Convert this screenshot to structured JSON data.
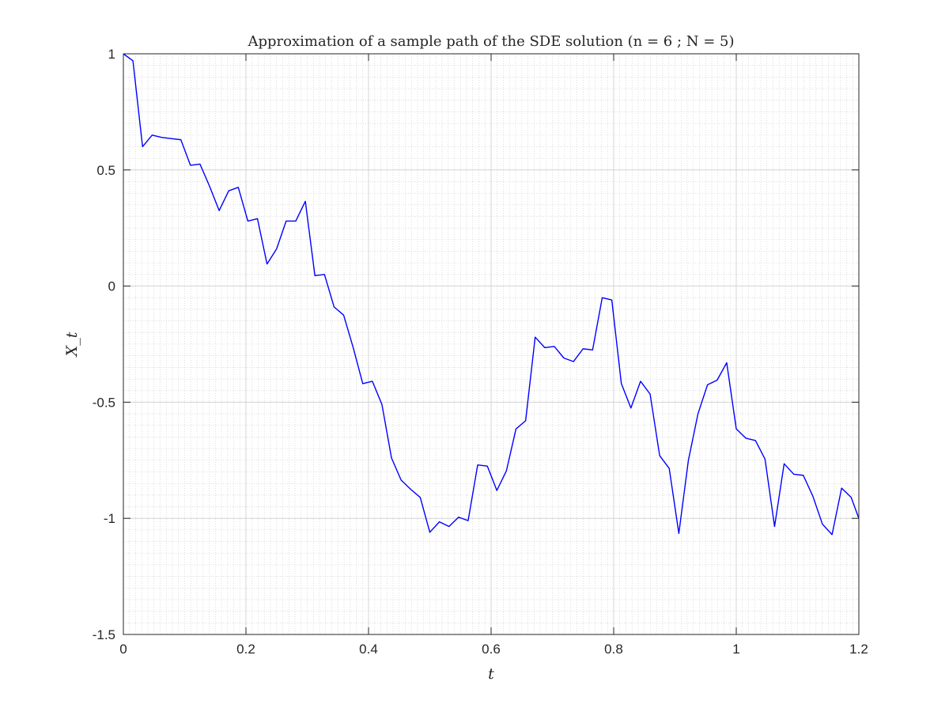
{
  "chart_data": {
    "type": "line",
    "title": "Approximation of a sample path of the SDE solution (n = 6 ; N = 5)",
    "xlabel": "t",
    "ylabel": "X_t",
    "xlim": [
      0,
      1.2
    ],
    "ylim": [
      -1.5,
      1
    ],
    "xticks": [
      0,
      0.2,
      0.4,
      0.6,
      0.8,
      1,
      1.2
    ],
    "xtick_labels": [
      "0",
      "0.2",
      "0.4",
      "0.6",
      "0.8",
      "1",
      "1.2"
    ],
    "yticks": [
      -1.5,
      -1,
      -0.5,
      0,
      0.5,
      1
    ],
    "ytick_labels": [
      "-1.5",
      "-1",
      "-0.5",
      "0",
      "0.5",
      "1"
    ],
    "grid": true,
    "minor_grid": true,
    "line_color": "#0000ff",
    "series": [
      {
        "x": [
          0,
          0.0156,
          0.0313,
          0.0469,
          0.0625,
          0.0781,
          0.0938,
          0.1094,
          0.125,
          0.1406,
          0.1563,
          0.1719,
          0.1875,
          0.2031,
          0.2188,
          0.2344,
          0.25,
          0.2656,
          0.2813,
          0.2969,
          0.3125,
          0.3281,
          0.3438,
          0.3594,
          0.375,
          0.3906,
          0.4063,
          0.4219,
          0.4375,
          0.4531,
          0.4688,
          0.4844,
          0.5,
          0.5156,
          0.5313,
          0.5469,
          0.5625,
          0.5781,
          0.5938,
          0.6094,
          0.625,
          0.6406,
          0.6563,
          0.6719,
          0.6875,
          0.7031,
          0.7188,
          0.7344,
          0.75,
          0.7656,
          0.7813,
          0.7969,
          0.8125,
          0.8281,
          0.8438,
          0.8594,
          0.875,
          0.8906,
          0.9063,
          0.9219,
          0.9375,
          0.9531,
          0.9688,
          0.9844,
          1.0,
          1.0156,
          1.0313,
          1.0469,
          1.0625,
          1.0781,
          1.0938,
          1.1094,
          1.125,
          1.1406,
          1.1563,
          1.1719,
          1.1875,
          1.2
        ],
        "y": [
          1.0,
          0.97,
          0.6,
          0.65,
          0.64,
          0.635,
          0.63,
          0.52,
          0.525,
          0.43,
          0.325,
          0.41,
          0.425,
          0.28,
          0.29,
          0.095,
          0.16,
          0.28,
          0.28,
          0.365,
          0.045,
          0.05,
          -0.09,
          -0.125,
          -0.265,
          -0.42,
          -0.41,
          -0.51,
          -0.74,
          -0.835,
          -0.875,
          -0.91,
          -1.06,
          -1.015,
          -1.035,
          -0.995,
          -1.01,
          -0.77,
          -0.775,
          -0.88,
          -0.795,
          -0.615,
          -0.58,
          -0.22,
          -0.265,
          -0.26,
          -0.31,
          -0.325,
          -0.27,
          -0.275,
          -0.05,
          -0.06,
          -0.42,
          -0.525,
          -0.41,
          -0.465,
          -0.73,
          -0.785,
          -1.065,
          -0.75,
          -0.55,
          -0.425,
          -0.405,
          -0.33,
          -0.615,
          -0.655,
          -0.665,
          -0.745,
          -1.035,
          -0.765,
          -0.81,
          -0.815,
          -0.905,
          -1.025,
          -1.07,
          -0.87,
          -0.91,
          -1.0
        ]
      }
    ]
  }
}
